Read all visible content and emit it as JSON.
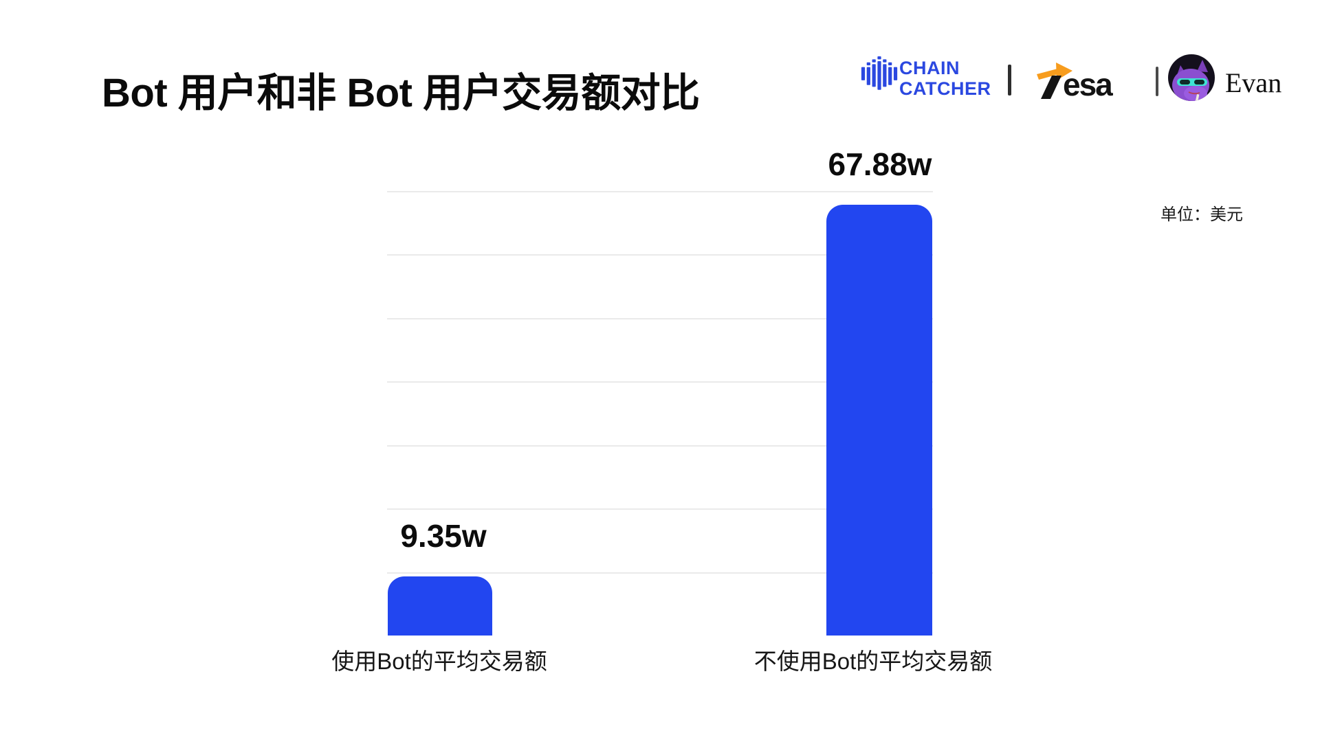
{
  "header": {
    "title": "Bot 用户和非 Bot 用户交易额对比",
    "brand_bar": {
      "chaincatcher": {
        "name": "ChainCatcher",
        "line1": "CHAIN",
        "line2": "CATCHER",
        "color": "#2B48E0"
      },
      "separator": "|",
      "tesa": {
        "name": "Tesa",
        "wordmark_tail": "esa",
        "arrow_color": "#F79C1D",
        "text_color": "#141414"
      },
      "author": {
        "name": "Evan"
      }
    }
  },
  "chart_data": {
    "type": "bar",
    "title": "Bot 用户和非 Bot 用户交易额对比",
    "unit_label": "单位：美元",
    "categories": [
      "使用Bot的平均交易额",
      "不使用Bot的平均交易额"
    ],
    "values": [
      9.35,
      67.88
    ],
    "value_labels": [
      "9.35w",
      "67.88w"
    ],
    "value_unit": "w",
    "ylim": [
      0,
      70
    ],
    "gridline_values": [
      10,
      20,
      30,
      40,
      50,
      60,
      70
    ],
    "bar_color": "#2246F0",
    "grid_color": "#EAEAEA",
    "grid": "on",
    "legend": "none",
    "xlabel": "",
    "ylabel": ""
  }
}
